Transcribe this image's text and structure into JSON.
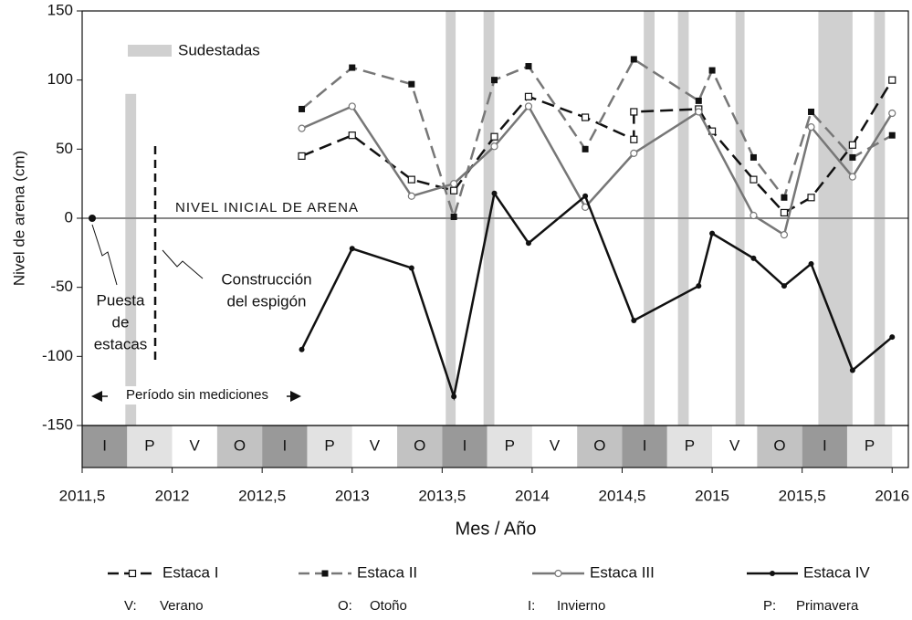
{
  "chart_data": {
    "type": "line",
    "x_label": "Mes / Año",
    "y_label": "Nivel de arena (cm)",
    "xlim": [
      2011.5,
      2016.09
    ],
    "ylim": [
      -150,
      150
    ],
    "xticks": [
      {
        "value": 2011.5,
        "label": "2011,5"
      },
      2012,
      {
        "value": 2012.5,
        "label": "2012,5"
      },
      2013,
      {
        "value": 2013.5,
        "label": "2013,5"
      },
      2014,
      {
        "value": 2014.5,
        "label": "2014,5"
      },
      2015,
      {
        "value": 2015.5,
        "label": "2015,5"
      },
      2016
    ],
    "yticks": [
      150,
      100,
      50,
      0,
      -50,
      -100,
      -150
    ],
    "series": [
      {
        "name": "Estaca I",
        "color": "#111111",
        "dash": true,
        "marker": "open-square",
        "x": [
          2012.72,
          2013.0,
          2013.33,
          2013.565,
          2013.79,
          2013.98,
          2014.295,
          2014.565,
          2014.565,
          2014.925,
          2015.0,
          2015.23,
          2015.4,
          2015.55,
          2015.78,
          2016.0
        ],
        "values": [
          45,
          60,
          28,
          20,
          59,
          88,
          73,
          57,
          77,
          79,
          63,
          28,
          4,
          15,
          53,
          100
        ]
      },
      {
        "name": "Estaca II",
        "color": "#777777",
        "dash": true,
        "marker": "filled-square",
        "x": [
          2012.72,
          2013.0,
          2013.33,
          2013.565,
          2013.79,
          2013.98,
          2014.295,
          2014.565,
          2014.925,
          2015.0,
          2015.23,
          2015.4,
          2015.55,
          2015.78,
          2016.0
        ],
        "values": [
          79,
          109,
          97,
          1,
          100,
          110,
          50,
          115,
          85,
          107,
          44,
          15,
          77,
          44,
          60
        ]
      },
      {
        "name": "Estaca III",
        "color": "#777777",
        "dash": false,
        "marker": "open-circle",
        "x": [
          2012.72,
          2013.0,
          2013.33,
          2013.565,
          2013.79,
          2013.98,
          2014.295,
          2014.565,
          2014.925,
          2015.23,
          2015.4,
          2015.55,
          2015.78,
          2016.0
        ],
        "values": [
          65,
          81,
          16,
          25.0,
          52,
          81,
          8,
          47,
          77,
          2,
          -12,
          66,
          30,
          76
        ]
      },
      {
        "name": "Estaca IV",
        "color": "#111111",
        "dash": false,
        "marker": "dot",
        "x": [
          2012.72,
          2013.0,
          2013.33,
          2013.565,
          2013.79,
          2013.98,
          2014.295,
          2014.565,
          2014.925,
          2015.0,
          2015.23,
          2015.4,
          2015.55,
          2015.78,
          2016.0
        ],
        "values": [
          -95,
          -22,
          -36,
          -129,
          18,
          -18,
          16,
          -74,
          -49,
          -11,
          -29,
          -49,
          -33,
          -110,
          -86
        ]
      }
    ],
    "sudestadas": {
      "label": "Sudestadas",
      "color": "#d0d0d0",
      "periods": [
        {
          "x": [
            2011.74,
            2011.8
          ],
          "top": 90
        },
        {
          "x": [
            2013.52,
            2013.575
          ]
        },
        {
          "x": [
            2013.73,
            2013.79
          ]
        },
        {
          "x": [
            2014.62,
            2014.68
          ]
        },
        {
          "x": [
            2014.81,
            2014.87
          ]
        },
        {
          "x": [
            2015.13,
            2015.18
          ]
        },
        {
          "x": [
            2015.59,
            2015.78
          ]
        },
        {
          "x": [
            2015.9,
            2015.96
          ]
        }
      ]
    },
    "seasons": [
      "I",
      "P",
      "V",
      "O",
      "I",
      "P",
      "V",
      "O",
      "I",
      "P",
      "V",
      "O",
      "I",
      "P",
      "V",
      "O",
      "I",
      "P"
    ],
    "season_colors": {
      "I": "#999999",
      "P": "#e2e2e2",
      "V": "#ffffff",
      "O": "#c2c2c2"
    },
    "annotations": {
      "zero_line": "NIVEL INICIAL DE ARENA",
      "puesta": [
        "Puesta",
        "de",
        "estacas"
      ],
      "construccion": [
        "Construcción",
        "del espigón"
      ],
      "periodo": "Período sin mediciones"
    },
    "season_key": [
      {
        "code": "V:",
        "name": "Verano"
      },
      {
        "code": "O:",
        "name": "Otoño"
      },
      {
        "code": "I:",
        "name": "Invierno"
      },
      {
        "code": "P:",
        "name": "Primavera"
      }
    ]
  }
}
